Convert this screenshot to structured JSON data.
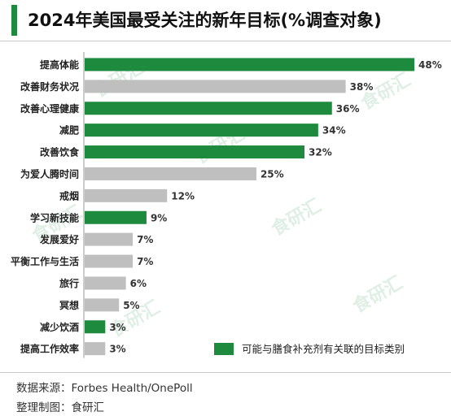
{
  "header": {
    "title": "2024年美国最受关注的新年目标(%调查对象)"
  },
  "legend": {
    "label": "可能与膳食补充剂有关联的目标类别"
  },
  "footer": {
    "source": "数据来源：Forbes Health/OnePoll",
    "maker": "整理制图：食研汇"
  },
  "watermark": {
    "text": "食研汇"
  },
  "colors": {
    "highlight": "#1d8a3e",
    "other": "#bfbfbf"
  },
  "chart_data": {
    "type": "bar",
    "orientation": "horizontal",
    "title": "2024年美国最受关注的新年目标(%调查对象)",
    "xlim": [
      0,
      48
    ],
    "grid": false,
    "legend_position": "bottom-right",
    "categories": [
      "提高体能",
      "改善财务状况",
      "改善心理健康",
      "减肥",
      "改善饮食",
      "为爱人腾时间",
      "戒烟",
      "学习新技能",
      "发展爱好",
      "平衡工作与生活",
      "旅行",
      "冥想",
      "减少饮酒",
      "提高工作效率"
    ],
    "values": [
      48,
      38,
      36,
      34,
      32,
      25,
      12,
      9,
      7,
      7,
      6,
      5,
      3,
      3
    ],
    "value_labels": [
      "48%",
      "38%",
      "36%",
      "34%",
      "32%",
      "25%",
      "12%",
      "9%",
      "7%",
      "7%",
      "6%",
      "5%",
      "3%",
      "3%"
    ],
    "supplement_related": [
      true,
      false,
      true,
      true,
      true,
      false,
      false,
      true,
      false,
      false,
      false,
      false,
      true,
      false
    ]
  }
}
